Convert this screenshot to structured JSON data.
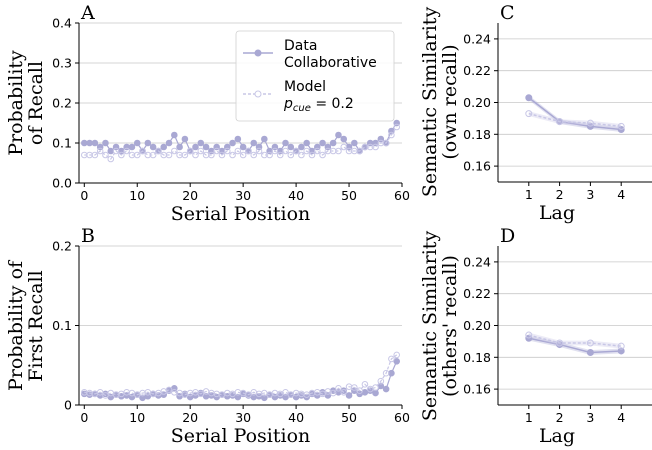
{
  "chart_data": [
    {
      "panel_label": "A",
      "type": "line",
      "xlabel": "Serial Position",
      "ylabel_lines": [
        "Probability",
        "of Recall"
      ],
      "xlim": [
        -1,
        60
      ],
      "ylim": [
        0,
        0.4
      ],
      "xticks": [
        0,
        10,
        20,
        30,
        40,
        50,
        60
      ],
      "yticks": [
        0.0,
        0.1,
        0.2,
        0.3,
        0.4
      ],
      "ytick_labels": [
        "0.0",
        "0.1",
        "0.2",
        "0.3",
        "0.4"
      ],
      "grid": "horizontal",
      "legend": {
        "placement": "top-right",
        "entries": [
          {
            "series": "data",
            "lines": [
              "Data",
              "Collaborative"
            ]
          },
          {
            "series": "model",
            "lines": [
              "Model"
            ],
            "math": {
              "base": "p",
              "sub": "cue",
              "rest": " = 0.2"
            }
          }
        ]
      },
      "series": [
        {
          "key": "data",
          "x_start": 0,
          "values": [
            0.1,
            0.1,
            0.1,
            0.09,
            0.1,
            0.08,
            0.09,
            0.08,
            0.09,
            0.09,
            0.1,
            0.08,
            0.1,
            0.09,
            0.08,
            0.09,
            0.1,
            0.12,
            0.09,
            0.11,
            0.08,
            0.09,
            0.1,
            0.09,
            0.08,
            0.09,
            0.08,
            0.09,
            0.1,
            0.11,
            0.09,
            0.08,
            0.1,
            0.09,
            0.11,
            0.08,
            0.09,
            0.08,
            0.1,
            0.09,
            0.08,
            0.09,
            0.1,
            0.08,
            0.09,
            0.1,
            0.09,
            0.1,
            0.12,
            0.11,
            0.09,
            0.1,
            0.08,
            0.09,
            0.1,
            0.1,
            0.11,
            0.1,
            0.13,
            0.15
          ]
        },
        {
          "key": "model",
          "x_start": 0,
          "values": [
            0.07,
            0.07,
            0.07,
            0.08,
            0.07,
            0.06,
            0.08,
            0.07,
            0.08,
            0.07,
            0.07,
            0.08,
            0.07,
            0.07,
            0.08,
            0.07,
            0.07,
            0.08,
            0.07,
            0.07,
            0.08,
            0.07,
            0.08,
            0.07,
            0.07,
            0.08,
            0.07,
            0.08,
            0.07,
            0.08,
            0.07,
            0.08,
            0.07,
            0.08,
            0.07,
            0.07,
            0.08,
            0.07,
            0.08,
            0.07,
            0.08,
            0.07,
            0.08,
            0.07,
            0.08,
            0.07,
            0.08,
            0.08,
            0.08,
            0.09,
            0.08,
            0.08,
            0.08,
            0.09,
            0.09,
            0.09,
            0.1,
            0.1,
            0.12,
            0.14
          ]
        }
      ]
    },
    {
      "panel_label": "B",
      "type": "line",
      "xlabel": "Serial Position",
      "ylabel_lines": [
        "Probability of",
        "First Recall"
      ],
      "xlim": [
        -1,
        60
      ],
      "ylim": [
        0,
        0.2
      ],
      "xticks": [
        0,
        10,
        20,
        30,
        40,
        50,
        60
      ],
      "yticks": [
        0.0,
        0.1,
        0.2
      ],
      "ytick_labels": [
        "0",
        "0.1",
        "0.2"
      ],
      "grid": "horizontal",
      "series": [
        {
          "key": "data",
          "x_start": 0,
          "values": [
            0.014,
            0.013,
            0.014,
            0.012,
            0.014,
            0.01,
            0.013,
            0.011,
            0.012,
            0.01,
            0.013,
            0.009,
            0.011,
            0.014,
            0.012,
            0.013,
            0.018,
            0.021,
            0.011,
            0.014,
            0.01,
            0.012,
            0.015,
            0.011,
            0.012,
            0.01,
            0.013,
            0.011,
            0.012,
            0.01,
            0.014,
            0.012,
            0.01,
            0.011,
            0.009,
            0.013,
            0.01,
            0.012,
            0.01,
            0.013,
            0.01,
            0.012,
            0.01,
            0.014,
            0.012,
            0.016,
            0.012,
            0.018,
            0.016,
            0.018,
            0.012,
            0.018,
            0.014,
            0.016,
            0.018,
            0.015,
            0.024,
            0.02,
            0.04,
            0.055
          ]
        },
        {
          "key": "model",
          "x_start": 0,
          "values": [
            0.016,
            0.015,
            0.014,
            0.016,
            0.012,
            0.015,
            0.013,
            0.014,
            0.016,
            0.015,
            0.013,
            0.015,
            0.016,
            0.014,
            0.015,
            0.017,
            0.019,
            0.016,
            0.015,
            0.013,
            0.015,
            0.016,
            0.014,
            0.017,
            0.015,
            0.014,
            0.013,
            0.015,
            0.014,
            0.016,
            0.015,
            0.013,
            0.016,
            0.014,
            0.015,
            0.013,
            0.015,
            0.014,
            0.016,
            0.013,
            0.015,
            0.014,
            0.013,
            0.015,
            0.016,
            0.014,
            0.017,
            0.015,
            0.021,
            0.016,
            0.023,
            0.022,
            0.018,
            0.026,
            0.02,
            0.022,
            0.03,
            0.04,
            0.058,
            0.063
          ]
        }
      ]
    },
    {
      "panel_label": "C",
      "type": "line",
      "xlabel": "Lag",
      "ylabel_lines": [
        "Semantic Similarity",
        "(own recall)"
      ],
      "xlim": [
        0,
        5
      ],
      "ylim": [
        0.15,
        0.25
      ],
      "xticks": [
        1,
        2,
        3,
        4
      ],
      "yticks": [
        0.16,
        0.18,
        0.2,
        0.22,
        0.24
      ],
      "ytick_labels": [
        "0.16",
        "0.18",
        "0.20",
        "0.22",
        "0.24"
      ],
      "grid": "horizontal",
      "series": [
        {
          "key": "data",
          "x_start": 1,
          "values": [
            0.203,
            0.188,
            0.185,
            0.183
          ]
        },
        {
          "key": "model",
          "x_start": 1,
          "values": [
            0.193,
            0.188,
            0.187,
            0.185
          ]
        }
      ]
    },
    {
      "panel_label": "D",
      "type": "line",
      "xlabel": "Lag",
      "ylabel_lines": [
        "Semantic Similarity",
        "(others' recall)"
      ],
      "xlim": [
        0,
        5
      ],
      "ylim": [
        0.15,
        0.25
      ],
      "xticks": [
        1,
        2,
        3,
        4
      ],
      "yticks": [
        0.16,
        0.18,
        0.2,
        0.22,
        0.24
      ],
      "ytick_labels": [
        "0.16",
        "0.18",
        "0.20",
        "0.22",
        "0.24"
      ],
      "grid": "horizontal",
      "series": [
        {
          "key": "data",
          "x_start": 1,
          "values": [
            0.192,
            0.188,
            0.183,
            0.184
          ]
        },
        {
          "key": "model",
          "x_start": 1,
          "values": [
            0.194,
            0.189,
            0.189,
            0.187
          ]
        }
      ]
    }
  ],
  "colors": {
    "data": "#a9a8d3",
    "model": "#c8c7e6",
    "grid": "#c8c8c8",
    "axis": "#000000"
  }
}
